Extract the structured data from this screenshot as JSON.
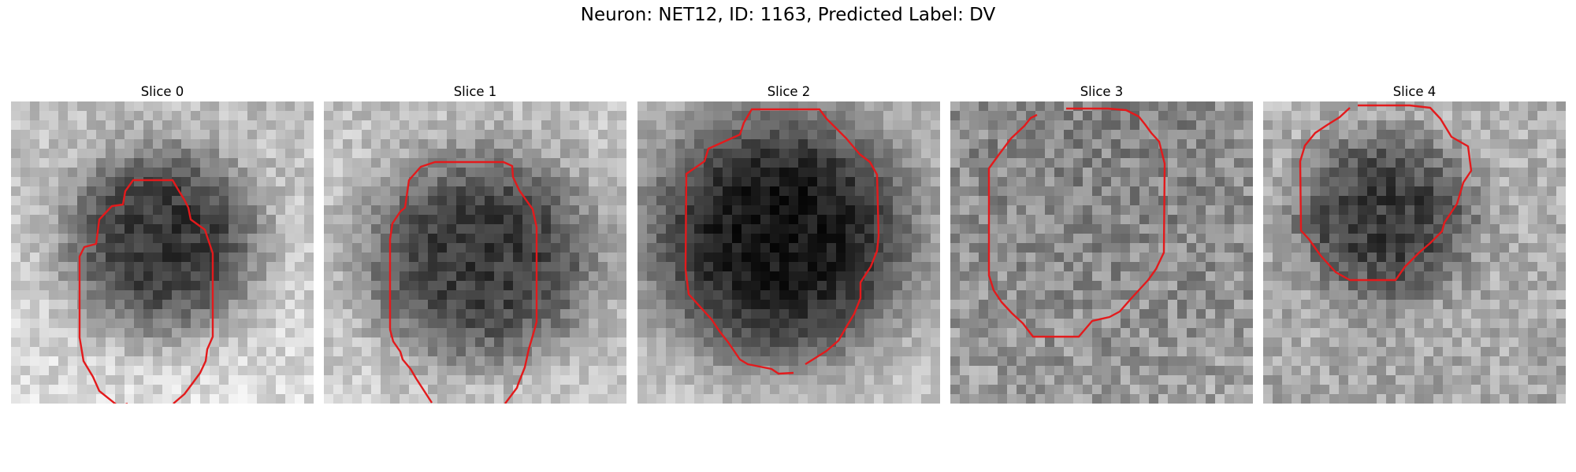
{
  "figure": {
    "suptitle": "Neuron: NET12, ID: 1163, Predicted Label: DV"
  },
  "panels": [
    {
      "title": "Slice 0"
    },
    {
      "title": "Slice 1"
    },
    {
      "title": "Slice 2"
    },
    {
      "title": "Slice 3"
    },
    {
      "title": "Slice 4"
    }
  ],
  "contour_color": "#e31a1c",
  "colormap": "gray"
}
